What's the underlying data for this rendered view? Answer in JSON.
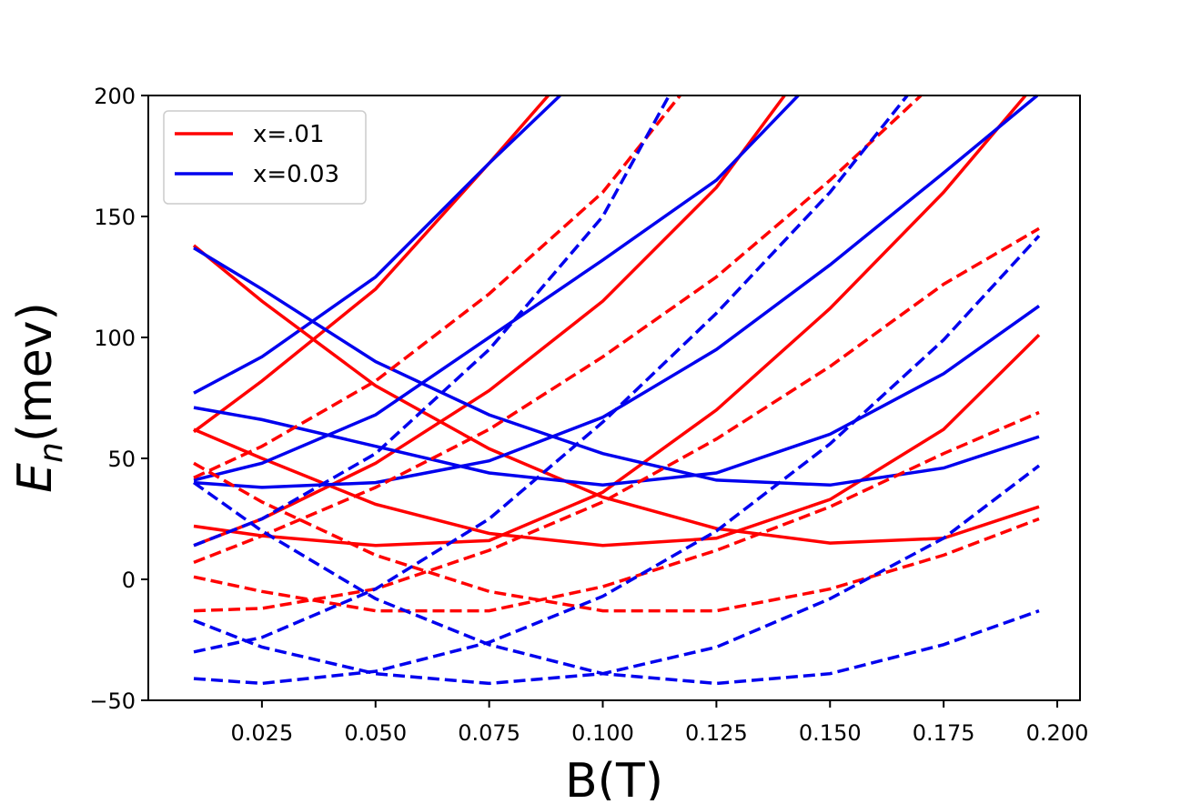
{
  "chart_data": {
    "type": "line",
    "xlabel": "B(T)",
    "ylabel": [
      "E",
      "n",
      "(mev)"
    ],
    "xlim": [
      0,
      0.205
    ],
    "ylim": [
      -50,
      200
    ],
    "xticks": [
      0.025,
      {
        "value": 0.05,
        "label": "0.050"
      },
      0.075,
      {
        "value": 0.1,
        "label": "0.100"
      },
      0.125,
      {
        "value": 0.15,
        "label": "0.150"
      },
      0.175,
      {
        "value": 0.2,
        "label": "0.200"
      }
    ],
    "yticks": [
      {
        "value": -50,
        "label": "−50"
      },
      0,
      50,
      100,
      150,
      200
    ],
    "legend": "upper left",
    "series": [
      {
        "name": "x=.01",
        "color": "#ff0000",
        "linestyle": "solid",
        "x": [
          0.01,
          0.025,
          0.05,
          0.075,
          0.088
        ],
        "values": [
          61,
          82,
          120,
          172,
          200
        ]
      },
      {
        "name": "x=0.03",
        "color": "#0000ee",
        "linestyle": "solid",
        "x": [
          0.01,
          0.025,
          0.05,
          0.075,
          0.0906
        ],
        "values": [
          77,
          92,
          125,
          172,
          200
        ]
      },
      {
        "color": "#ff0000",
        "linestyle": "solid",
        "x": [
          0.01,
          0.025,
          0.05,
          0.075,
          0.1,
          0.125,
          0.14
        ],
        "values": [
          14,
          25,
          48,
          78,
          115,
          162,
          200
        ]
      },
      {
        "color": "#ff0000",
        "linestyle": "solid",
        "x": [
          0.01,
          0.025,
          0.05,
          0.075,
          0.1,
          0.125,
          0.15,
          0.175,
          0.193
        ],
        "values": [
          22,
          18,
          14,
          16,
          36,
          70,
          112,
          160,
          200
        ]
      },
      {
        "color": "#ff0000",
        "linestyle": "solid",
        "x": [
          0.01,
          0.025,
          0.05,
          0.075,
          0.1,
          0.125,
          0.15,
          0.175,
          0.196
        ],
        "values": [
          62,
          50,
          31,
          19,
          14,
          17,
          33,
          62,
          101
        ]
      },
      {
        "color": "#ff0000",
        "linestyle": "solid",
        "x": [
          0.01,
          0.025,
          0.05,
          0.075,
          0.1,
          0.125,
          0.15,
          0.175,
          0.196
        ],
        "values": [
          138,
          115,
          80,
          54,
          34,
          21,
          15,
          17,
          30
        ]
      },
      {
        "color": "#0000ee",
        "linestyle": "solid",
        "x": [
          0.01,
          0.025,
          0.05,
          0.075,
          0.1,
          0.125,
          0.143
        ],
        "values": [
          41,
          48,
          68,
          100,
          132,
          165,
          200
        ]
      },
      {
        "color": "#0000ee",
        "linestyle": "solid",
        "x": [
          0.01,
          0.025,
          0.05,
          0.075,
          0.1,
          0.125,
          0.15,
          0.175,
          0.1956
        ],
        "values": [
          40,
          38,
          40,
          49,
          67,
          95,
          130,
          168,
          200
        ]
      },
      {
        "color": "#0000ee",
        "linestyle": "solid",
        "x": [
          0.01,
          0.025,
          0.05,
          0.075,
          0.1,
          0.125,
          0.15,
          0.175,
          0.196
        ],
        "values": [
          71,
          66,
          55,
          44,
          39,
          44,
          60,
          85,
          113
        ]
      },
      {
        "color": "#0000ee",
        "linestyle": "solid",
        "x": [
          0.01,
          0.025,
          0.05,
          0.075,
          0.1,
          0.125,
          0.15,
          0.175,
          0.196
        ],
        "values": [
          137,
          120,
          90,
          68,
          52,
          41,
          39,
          46,
          59
        ]
      },
      {
        "color": "#ff0000",
        "linestyle": "dashed",
        "x": [
          0.01,
          0.025,
          0.05,
          0.075,
          0.1,
          0.117
        ],
        "values": [
          42,
          55,
          82,
          118,
          160,
          200
        ]
      },
      {
        "color": "#ff0000",
        "linestyle": "dashed",
        "x": [
          0.01,
          0.025,
          0.05,
          0.075,
          0.1,
          0.125,
          0.15,
          0.17
        ],
        "values": [
          7,
          18,
          38,
          62,
          92,
          125,
          165,
          200
        ]
      },
      {
        "color": "#ff0000",
        "linestyle": "dashed",
        "x": [
          0.01,
          0.025,
          0.05,
          0.075,
          0.1,
          0.125,
          0.15,
          0.175,
          0.196
        ],
        "values": [
          -13,
          -12,
          -4,
          12,
          32,
          58,
          88,
          122,
          145
        ]
      },
      {
        "color": "#ff0000",
        "linestyle": "dashed",
        "x": [
          0.01,
          0.025,
          0.05,
          0.075,
          0.1,
          0.125,
          0.15,
          0.175,
          0.196
        ],
        "values": [
          1,
          -5,
          -13,
          -13,
          -3,
          12,
          30,
          52,
          69
        ]
      },
      {
        "color": "#ff0000",
        "linestyle": "dashed",
        "x": [
          0.01,
          0.025,
          0.05,
          0.075,
          0.1,
          0.125,
          0.15,
          0.175,
          0.196
        ],
        "values": [
          48,
          32,
          10,
          -5,
          -13,
          -13,
          -4,
          10,
          25
        ]
      },
      {
        "color": "#0000ee",
        "linestyle": "dashed",
        "x": [
          0.01,
          0.025,
          0.05,
          0.075,
          0.1,
          0.1146
        ],
        "values": [
          14,
          25,
          52,
          95,
          150,
          200
        ]
      },
      {
        "color": "#0000ee",
        "linestyle": "dashed",
        "x": [
          0.01,
          0.025,
          0.05,
          0.075,
          0.1,
          0.125,
          0.15,
          0.167
        ],
        "values": [
          -30,
          -24,
          -4,
          25,
          65,
          110,
          160,
          200
        ]
      },
      {
        "color": "#0000ee",
        "linestyle": "dashed",
        "x": [
          0.01,
          0.025,
          0.05,
          0.075,
          0.1,
          0.125,
          0.15,
          0.175,
          0.196
        ],
        "values": [
          -41,
          -43,
          -38,
          -26,
          -7,
          20,
          56,
          99,
          142
        ]
      },
      {
        "color": "#0000ee",
        "linestyle": "dashed",
        "x": [
          0.01,
          0.025,
          0.05,
          0.075,
          0.1,
          0.125,
          0.15,
          0.175,
          0.196
        ],
        "values": [
          -17,
          -28,
          -39,
          -43,
          -39,
          -28,
          -8,
          17,
          47
        ]
      },
      {
        "color": "#0000ee",
        "linestyle": "dashed",
        "x": [
          0.01,
          0.025,
          0.05,
          0.075,
          0.1,
          0.125,
          0.15,
          0.175,
          0.196
        ],
        "values": [
          40,
          20,
          -8,
          -27,
          -39,
          -43,
          -39,
          -27,
          -13
        ]
      }
    ]
  }
}
